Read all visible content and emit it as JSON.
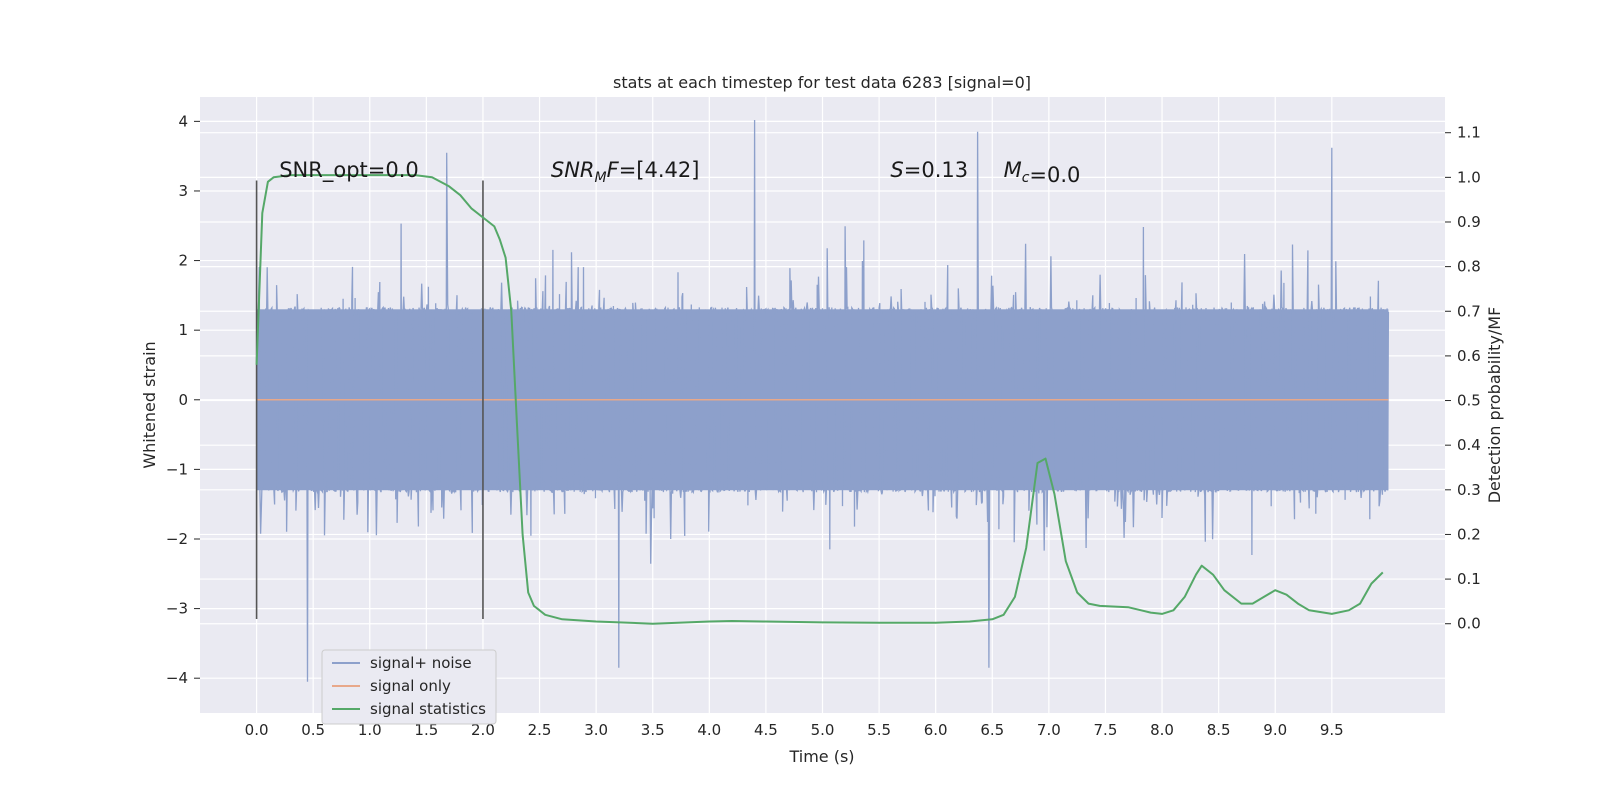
{
  "chart_data": {
    "type": "line",
    "title": "stats at each timestep for test data 6283 [signal=0]",
    "xlabel": "Time (s)",
    "ylabel_left": "Whitened strain",
    "ylabel_right": "Detection probability/MF",
    "xlim": [
      -0.5,
      10.5
    ],
    "ylim_left": [
      -4.5,
      4.35
    ],
    "ylim_right": [
      -0.2,
      1.18
    ],
    "x_ticks": [
      "0.0",
      "0.5",
      "1.0",
      "1.5",
      "2.0",
      "2.5",
      "3.0",
      "3.5",
      "4.0",
      "4.5",
      "5.0",
      "5.5",
      "6.0",
      "6.5",
      "7.0",
      "7.5",
      "8.0",
      "8.5",
      "9.0",
      "9.5"
    ],
    "y_left_ticks": [
      "4",
      "3",
      "2",
      "1",
      "0",
      "−1",
      "−2",
      "−3",
      "−4"
    ],
    "y_right_ticks": [
      "1.1",
      "1.0",
      "0.9",
      "0.8",
      "0.7",
      "0.6",
      "0.5",
      "0.4",
      "0.3",
      "0.2",
      "0.1",
      "0.0"
    ],
    "grid": true,
    "legend_position": "lower-left",
    "annotations": [
      {
        "text": "SNR_opt=0.0",
        "x": 0.2,
        "y": 3.2
      },
      {
        "text": "SNR_M F=[4.42]",
        "x": 2.6,
        "y": 3.2
      },
      {
        "text": "S=0.13",
        "x": 5.6,
        "y": 3.2
      },
      {
        "text": "M_c=0.0",
        "x": 6.6,
        "y": 3.2
      }
    ],
    "vertical_markers": [
      {
        "x": 0.0,
        "y_range": [
          -3.15,
          3.15
        ]
      },
      {
        "x": 2.0,
        "y_range": [
          -3.15,
          3.15
        ]
      }
    ],
    "series": [
      {
        "name": "signal+ noise",
        "color": "#8da0cb",
        "axis": "left",
        "description_x_range": [
          0.0,
          10.0
        ],
        "typical_envelope": [
          -1.3,
          1.3
        ],
        "peaks": [
          {
            "x": 0.45,
            "y": -4.05
          },
          {
            "x": 1.68,
            "y": 3.55
          },
          {
            "x": 3.2,
            "y": -3.85
          },
          {
            "x": 4.4,
            "y": 4.02
          },
          {
            "x": 6.37,
            "y": 3.85
          },
          {
            "x": 6.47,
            "y": -3.85
          },
          {
            "x": 9.5,
            "y": 3.62
          }
        ]
      },
      {
        "name": "signal only",
        "color": "#e8a88a",
        "axis": "left",
        "x": [
          0.0,
          10.0
        ],
        "y": [
          0.0,
          0.0
        ]
      },
      {
        "name": "signal statistics",
        "color": "#55a868",
        "axis": "right",
        "x": [
          0.0,
          0.05,
          0.1,
          0.15,
          0.3,
          0.6,
          1.0,
          1.4,
          1.55,
          1.7,
          1.8,
          1.9,
          2.0,
          2.1,
          2.15,
          2.2,
          2.25,
          2.3,
          2.35,
          2.4,
          2.45,
          2.55,
          2.7,
          3.0,
          3.5,
          4.0,
          4.2,
          4.5,
          5.0,
          5.5,
          6.0,
          6.3,
          6.5,
          6.6,
          6.7,
          6.8,
          6.9,
          6.97,
          7.05,
          7.15,
          7.25,
          7.35,
          7.45,
          7.7,
          7.9,
          8.0,
          8.1,
          8.2,
          8.3,
          8.35,
          8.45,
          8.55,
          8.7,
          8.8,
          8.9,
          9.0,
          9.1,
          9.2,
          9.3,
          9.5,
          9.65,
          9.75,
          9.85,
          9.95
        ],
        "y": [
          0.58,
          0.92,
          0.99,
          1.0,
          1.005,
          1.005,
          1.005,
          1.005,
          1.0,
          0.98,
          0.96,
          0.93,
          0.91,
          0.89,
          0.86,
          0.82,
          0.7,
          0.45,
          0.2,
          0.07,
          0.04,
          0.02,
          0.01,
          0.005,
          0.0,
          0.005,
          0.006,
          0.005,
          0.003,
          0.002,
          0.002,
          0.005,
          0.01,
          0.02,
          0.06,
          0.17,
          0.36,
          0.37,
          0.29,
          0.14,
          0.07,
          0.045,
          0.04,
          0.037,
          0.025,
          0.022,
          0.03,
          0.06,
          0.11,
          0.13,
          0.11,
          0.075,
          0.045,
          0.045,
          0.06,
          0.075,
          0.065,
          0.045,
          0.03,
          0.022,
          0.03,
          0.045,
          0.09,
          0.115
        ]
      }
    ]
  }
}
